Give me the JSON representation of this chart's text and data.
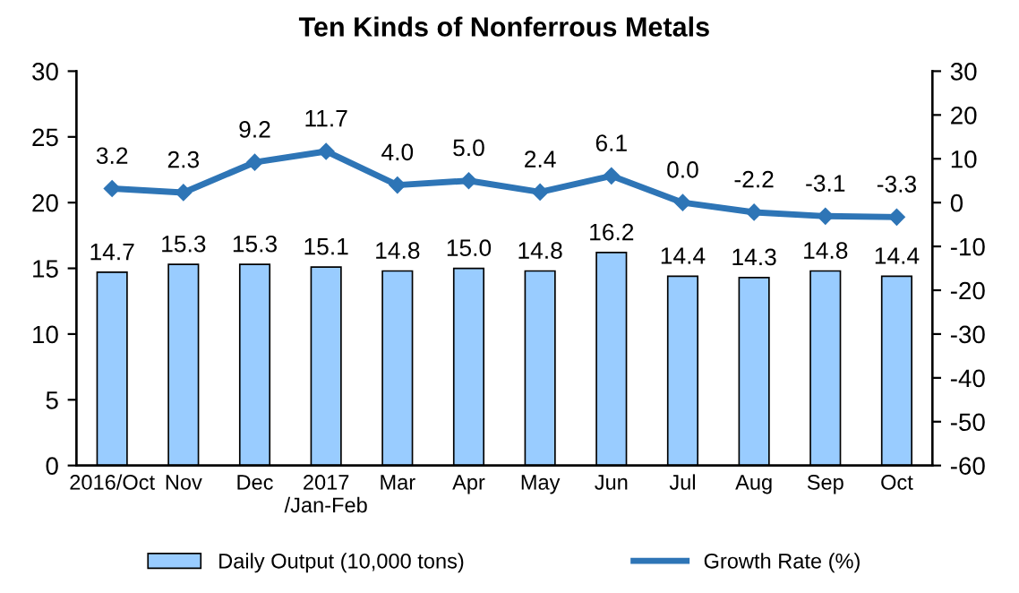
{
  "chart_data": {
    "type": "bar",
    "title": "Ten Kinds of Nonferrous Metals",
    "categories": [
      "2016/Oct",
      "Nov",
      "Dec",
      "2017\n/Jan-Feb",
      "Mar",
      "Apr",
      "May",
      "Jun",
      "Jul",
      "Aug",
      "Sep",
      "Oct"
    ],
    "series": [
      {
        "name": "Daily Output (10,000 tons)",
        "color": "#99ccff",
        "values": [
          14.7,
          15.3,
          15.3,
          15.1,
          14.8,
          15.0,
          14.8,
          16.2,
          14.4,
          14.3,
          14.8,
          14.4
        ],
        "value_labels": [
          "14.7",
          "15.3",
          "15.3",
          "15.1",
          "14.8",
          "15.0",
          "14.8",
          "16.2",
          "14.4",
          "14.3",
          "14.8",
          "14.4"
        ]
      },
      {
        "name": "Growth Rate (%)",
        "type": "line",
        "axis": "y2",
        "color": "#2e75b6",
        "marker": "diamond",
        "values": [
          3.2,
          2.3,
          9.2,
          11.7,
          4.0,
          5.0,
          2.4,
          6.1,
          0.0,
          -2.2,
          -3.1,
          -3.3
        ],
        "value_labels": [
          "3.2",
          "2.3",
          "9.2",
          "11.7",
          "4.0",
          "5.0",
          "2.4",
          "6.1",
          "0.0",
          "-2.2",
          "-3.1",
          "-3.3"
        ]
      }
    ],
    "ylim": [
      0,
      30
    ],
    "yticks": [
      0,
      5,
      10,
      15,
      20,
      25,
      30
    ],
    "y2lim": [
      -60,
      30
    ],
    "y2ticks": [
      -60,
      -50,
      -40,
      -30,
      -20,
      -10,
      0,
      10,
      20,
      30
    ],
    "grid": false,
    "legend": "bottom"
  }
}
